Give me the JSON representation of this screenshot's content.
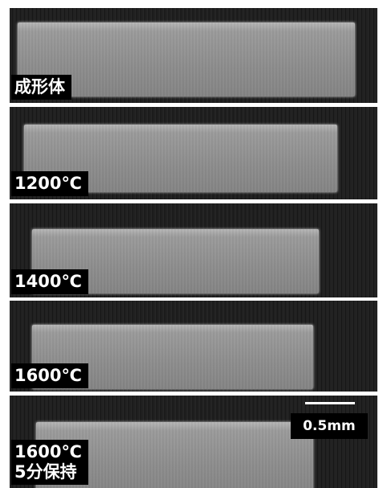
{
  "panels": [
    {
      "label": [
        "成形体"
      ]
    },
    {
      "label": [
        "1200℃"
      ]
    },
    {
      "label": [
        "1400℃"
      ]
    },
    {
      "label": [
        "1600℃"
      ]
    },
    {
      "label": [
        "1600℃",
        "5分保持"
      ]
    }
  ],
  "scale_bar": {
    "label": "0.5mm"
  }
}
